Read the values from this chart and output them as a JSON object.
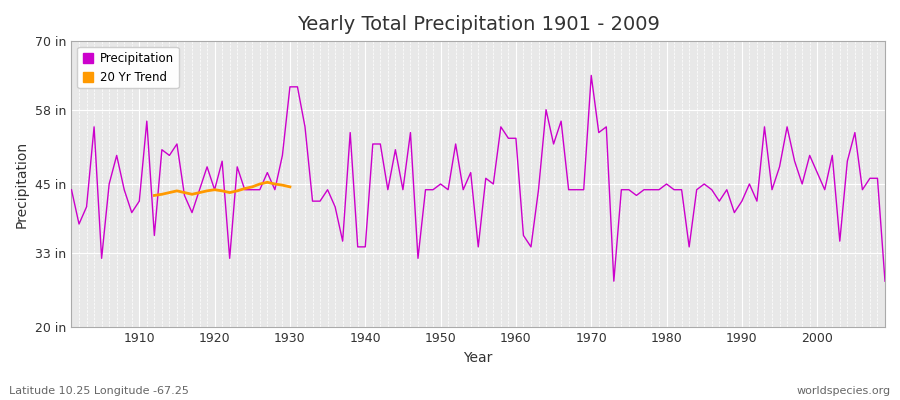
{
  "title": "Yearly Total Precipitation 1901 - 2009",
  "xlabel": "Year",
  "ylabel": "Precipitation",
  "subtitle_left": "Latitude 10.25 Longitude -67.25",
  "subtitle_right": "worldspecies.org",
  "ylim": [
    20,
    70
  ],
  "yticks": [
    20,
    33,
    45,
    58,
    70
  ],
  "ytick_labels": [
    "20 in",
    "33 in",
    "45 in",
    "58 in",
    "70 in"
  ],
  "xlim": [
    1901,
    2009
  ],
  "xticks": [
    1910,
    1920,
    1930,
    1940,
    1950,
    1960,
    1970,
    1980,
    1990,
    2000
  ],
  "precip_color": "#cc00cc",
  "trend_color": "#ff9900",
  "plot_bg_color": "#e8e8e8",
  "figure_bg_color": "#ffffff",
  "grid_color": "#ffffff",
  "years": [
    1901,
    1902,
    1903,
    1904,
    1905,
    1906,
    1907,
    1908,
    1909,
    1910,
    1911,
    1912,
    1913,
    1914,
    1915,
    1916,
    1917,
    1918,
    1919,
    1920,
    1921,
    1922,
    1923,
    1924,
    1925,
    1926,
    1927,
    1928,
    1929,
    1930,
    1931,
    1932,
    1933,
    1934,
    1935,
    1936,
    1937,
    1938,
    1939,
    1940,
    1941,
    1942,
    1943,
    1944,
    1945,
    1946,
    1947,
    1948,
    1949,
    1950,
    1951,
    1952,
    1953,
    1954,
    1955,
    1956,
    1957,
    1958,
    1959,
    1960,
    1961,
    1962,
    1963,
    1964,
    1965,
    1966,
    1967,
    1968,
    1969,
    1970,
    1971,
    1972,
    1973,
    1974,
    1975,
    1976,
    1977,
    1978,
    1979,
    1980,
    1981,
    1982,
    1983,
    1984,
    1985,
    1986,
    1987,
    1988,
    1989,
    1990,
    1991,
    1992,
    1993,
    1994,
    1995,
    1996,
    1997,
    1998,
    1999,
    2000,
    2001,
    2002,
    2003,
    2004,
    2005,
    2006,
    2007,
    2008,
    2009
  ],
  "precipitation": [
    44,
    38,
    41,
    55,
    32,
    45,
    50,
    44,
    40,
    42,
    56,
    36,
    51,
    50,
    52,
    43,
    40,
    44,
    48,
    44,
    49,
    32,
    48,
    44,
    44,
    44,
    47,
    44,
    50,
    62,
    62,
    55,
    42,
    42,
    44,
    41,
    35,
    54,
    34,
    34,
    52,
    52,
    44,
    51,
    44,
    54,
    32,
    44,
    44,
    45,
    44,
    52,
    44,
    47,
    34,
    46,
    45,
    55,
    53,
    53,
    36,
    34,
    44,
    58,
    52,
    56,
    44,
    44,
    44,
    64,
    54,
    55,
    28,
    44,
    44,
    43,
    44,
    44,
    44,
    45,
    44,
    44,
    34,
    44,
    45,
    44,
    42,
    44,
    40,
    42,
    45,
    42,
    55,
    44,
    48,
    55,
    49,
    45,
    50,
    47,
    44,
    50,
    35,
    49,
    54,
    44,
    46,
    46,
    28
  ],
  "trend_years": [
    1912,
    1913,
    1914,
    1915,
    1916,
    1917,
    1918,
    1919,
    1920,
    1921,
    1922,
    1923,
    1924,
    1925,
    1926,
    1927,
    1928,
    1929,
    1930
  ],
  "trend_values": [
    43.0,
    43.2,
    43.5,
    43.8,
    43.5,
    43.2,
    43.5,
    43.8,
    44.0,
    43.8,
    43.5,
    43.8,
    44.2,
    44.5,
    45.0,
    45.3,
    45.0,
    44.8,
    44.5
  ]
}
